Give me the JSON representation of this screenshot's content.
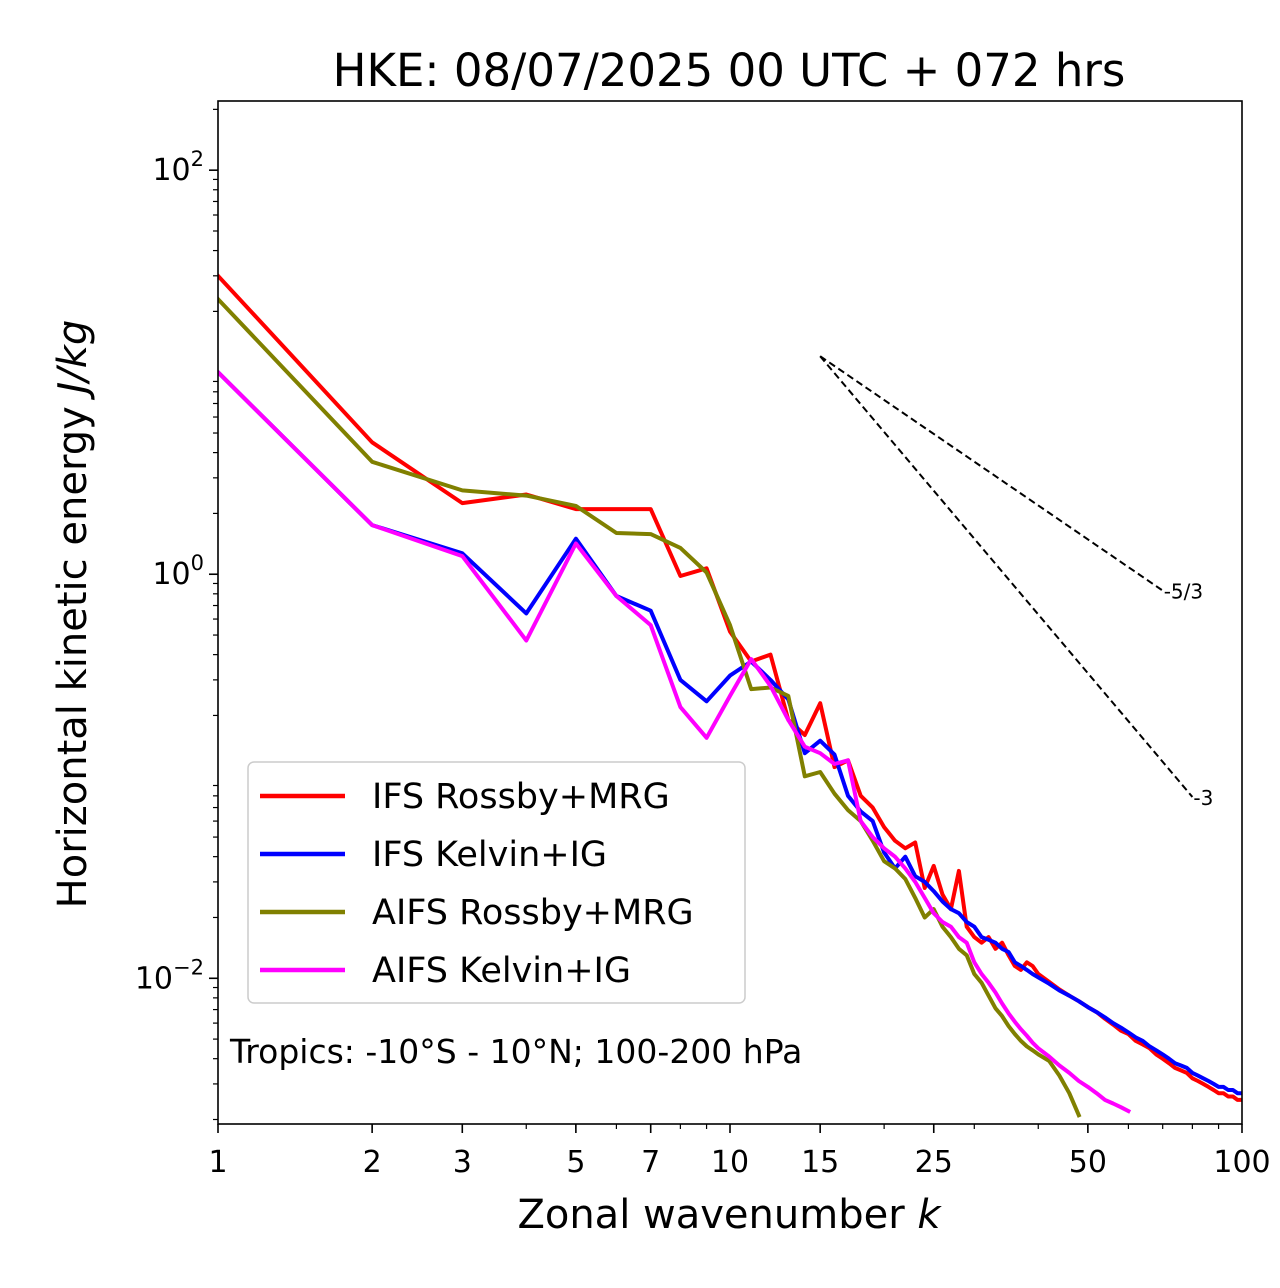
{
  "chart_data": {
    "type": "line",
    "title": "HKE: 08/07/2025 00 UTC + 072 hrs",
    "xlabel": "Zonal wavenumber k",
    "xlabel_parts": {
      "text": "Zonal wavenumber ",
      "italic": "k"
    },
    "ylabel": "Horizontal kinetic energy J/kg",
    "ylabel_parts": {
      "text": "Horizontal kinetic energy ",
      "italic": "J/kg"
    },
    "x_scale": "log",
    "y_scale": "log",
    "xlim": [
      1,
      100
    ],
    "ylim": [
      0.0019,
      220
    ],
    "x_ticks": [
      {
        "value": 1,
        "label": "1"
      },
      {
        "value": 2,
        "label": "2"
      },
      {
        "value": 3,
        "label": "3"
      },
      {
        "value": 5,
        "label": "5"
      },
      {
        "value": 7,
        "label": "7"
      },
      {
        "value": 10,
        "label": "10"
      },
      {
        "value": 15,
        "label": "15"
      },
      {
        "value": 25,
        "label": "25"
      },
      {
        "value": 50,
        "label": "50"
      },
      {
        "value": 100,
        "label": "100"
      }
    ],
    "y_ticks": [
      {
        "value": 100,
        "base": "10",
        "exp": "2"
      },
      {
        "value": 1,
        "base": "10",
        "exp": "0"
      },
      {
        "value": 0.01,
        "base": "10",
        "exp": "−2"
      }
    ],
    "grid": false,
    "legend_position": "lower-left",
    "annotation": "Tropics: -10°S - 10°N; 100-200 hPa",
    "reference_lines": [
      {
        "label": "-5/3",
        "slope": -1.6667,
        "x": [
          15,
          70
        ],
        "y": [
          12.0,
          0.83
        ]
      },
      {
        "label": "-3",
        "slope": -3,
        "x": [
          15,
          80
        ],
        "y": [
          12.0,
          0.079
        ]
      }
    ],
    "series": [
      {
        "name": "IFS Rossby+MRG",
        "color": "#ff0000",
        "x": [
          1,
          2,
          3,
          4,
          5,
          6,
          7,
          8,
          9,
          10,
          11,
          12,
          13,
          14,
          15,
          16,
          17,
          18,
          19,
          20,
          21,
          22,
          23,
          24,
          25,
          26,
          27,
          28,
          29,
          30,
          31,
          32,
          33,
          34,
          35,
          36,
          37,
          38,
          39,
          40,
          42,
          44,
          46,
          48,
          50,
          52,
          54,
          56,
          58,
          60,
          62,
          64,
          66,
          68,
          70,
          72,
          74,
          76,
          78,
          80,
          82,
          84,
          86,
          88,
          90,
          92,
          94,
          96,
          98,
          100
        ],
        "y": [
          30,
          4.5,
          2.25,
          2.48,
          2.1,
          2.1,
          2.1,
          0.98,
          1.07,
          0.52,
          0.37,
          0.4,
          0.19,
          0.16,
          0.23,
          0.111,
          0.12,
          0.08,
          0.07,
          0.056,
          0.048,
          0.044,
          0.047,
          0.028,
          0.036,
          0.026,
          0.022,
          0.034,
          0.018,
          0.016,
          0.015,
          0.016,
          0.014,
          0.015,
          0.013,
          0.0115,
          0.011,
          0.012,
          0.0115,
          0.0105,
          0.0096,
          0.0088,
          0.0082,
          0.0077,
          0.0072,
          0.0068,
          0.0063,
          0.0059,
          0.0055,
          0.0053,
          0.0049,
          0.0047,
          0.0045,
          0.0042,
          0.004,
          0.0038,
          0.0036,
          0.0035,
          0.0034,
          0.0032,
          0.0031,
          0.003,
          0.0029,
          0.0028,
          0.0027,
          0.0027,
          0.0026,
          0.0026,
          0.0025,
          0.0025
        ]
      },
      {
        "name": "IFS Kelvin+IG",
        "color": "#0000ff",
        "x": [
          1,
          2,
          3,
          4,
          5,
          6,
          7,
          8,
          9,
          10,
          11,
          12,
          13,
          14,
          15,
          16,
          17,
          18,
          19,
          20,
          21,
          22,
          23,
          24,
          25,
          26,
          27,
          28,
          29,
          30,
          31,
          32,
          33,
          34,
          35,
          36,
          37,
          38,
          39,
          40,
          42,
          44,
          46,
          48,
          50,
          52,
          54,
          56,
          58,
          60,
          62,
          64,
          66,
          68,
          70,
          72,
          74,
          76,
          78,
          80,
          82,
          84,
          86,
          88,
          90,
          92,
          94,
          96,
          98,
          100
        ],
        "y": [
          10,
          1.75,
          1.27,
          0.64,
          1.5,
          0.78,
          0.66,
          0.3,
          0.235,
          0.315,
          0.37,
          0.3,
          0.24,
          0.13,
          0.15,
          0.128,
          0.08,
          0.067,
          0.06,
          0.042,
          0.035,
          0.04,
          0.032,
          0.03,
          0.027,
          0.024,
          0.022,
          0.021,
          0.019,
          0.018,
          0.016,
          0.0155,
          0.015,
          0.014,
          0.0135,
          0.012,
          0.0115,
          0.011,
          0.0105,
          0.0101,
          0.0094,
          0.0087,
          0.0082,
          0.0077,
          0.0072,
          0.0068,
          0.0064,
          0.006,
          0.0057,
          0.0054,
          0.0051,
          0.0049,
          0.0046,
          0.0044,
          0.0042,
          0.004,
          0.0038,
          0.0037,
          0.0036,
          0.0034,
          0.0033,
          0.0032,
          0.0031,
          0.003,
          0.0029,
          0.0029,
          0.0028,
          0.0028,
          0.0027,
          0.0027
        ]
      },
      {
        "name": "AIFS Rossby+MRG",
        "color": "#808000",
        "x": [
          1,
          2,
          3,
          4,
          5,
          6,
          7,
          8,
          9,
          10,
          11,
          12,
          13,
          14,
          15,
          16,
          17,
          18,
          19,
          20,
          21,
          22,
          23,
          24,
          25,
          26,
          27,
          28,
          29,
          30,
          31,
          32,
          33,
          34,
          35,
          36,
          37,
          38,
          39,
          40,
          42,
          44,
          46,
          48
        ],
        "y": [
          23,
          3.6,
          2.6,
          2.45,
          2.18,
          1.6,
          1.58,
          1.35,
          1.02,
          0.56,
          0.27,
          0.275,
          0.25,
          0.1,
          0.105,
          0.082,
          0.068,
          0.06,
          0.048,
          0.038,
          0.035,
          0.031,
          0.025,
          0.02,
          0.022,
          0.018,
          0.016,
          0.014,
          0.013,
          0.0105,
          0.0095,
          0.0082,
          0.0071,
          0.0065,
          0.0058,
          0.0053,
          0.0049,
          0.0046,
          0.0044,
          0.0042,
          0.0039,
          0.0033,
          0.0027,
          0.0021
        ]
      },
      {
        "name": "AIFS Kelvin+IG",
        "color": "#ff00ff",
        "x": [
          1,
          2,
          3,
          4,
          5,
          6,
          7,
          8,
          9,
          10,
          11,
          12,
          13,
          14,
          15,
          16,
          17,
          18,
          19,
          20,
          21,
          22,
          23,
          24,
          25,
          26,
          27,
          28,
          29,
          30,
          31,
          32,
          33,
          34,
          35,
          36,
          37,
          38,
          39,
          40,
          42,
          44,
          46,
          48,
          50,
          52,
          54,
          56,
          58,
          60
        ],
        "y": [
          10,
          1.75,
          1.23,
          0.47,
          1.42,
          0.78,
          0.56,
          0.22,
          0.155,
          0.25,
          0.38,
          0.28,
          0.19,
          0.14,
          0.13,
          0.115,
          0.12,
          0.06,
          0.05,
          0.044,
          0.04,
          0.035,
          0.03,
          0.025,
          0.021,
          0.019,
          0.018,
          0.016,
          0.015,
          0.012,
          0.0105,
          0.0095,
          0.0085,
          0.0075,
          0.0067,
          0.0061,
          0.0056,
          0.0052,
          0.0048,
          0.0045,
          0.0041,
          0.0037,
          0.0034,
          0.0031,
          0.0029,
          0.0027,
          0.0025,
          0.0024,
          0.0023,
          0.0022
        ]
      }
    ]
  }
}
